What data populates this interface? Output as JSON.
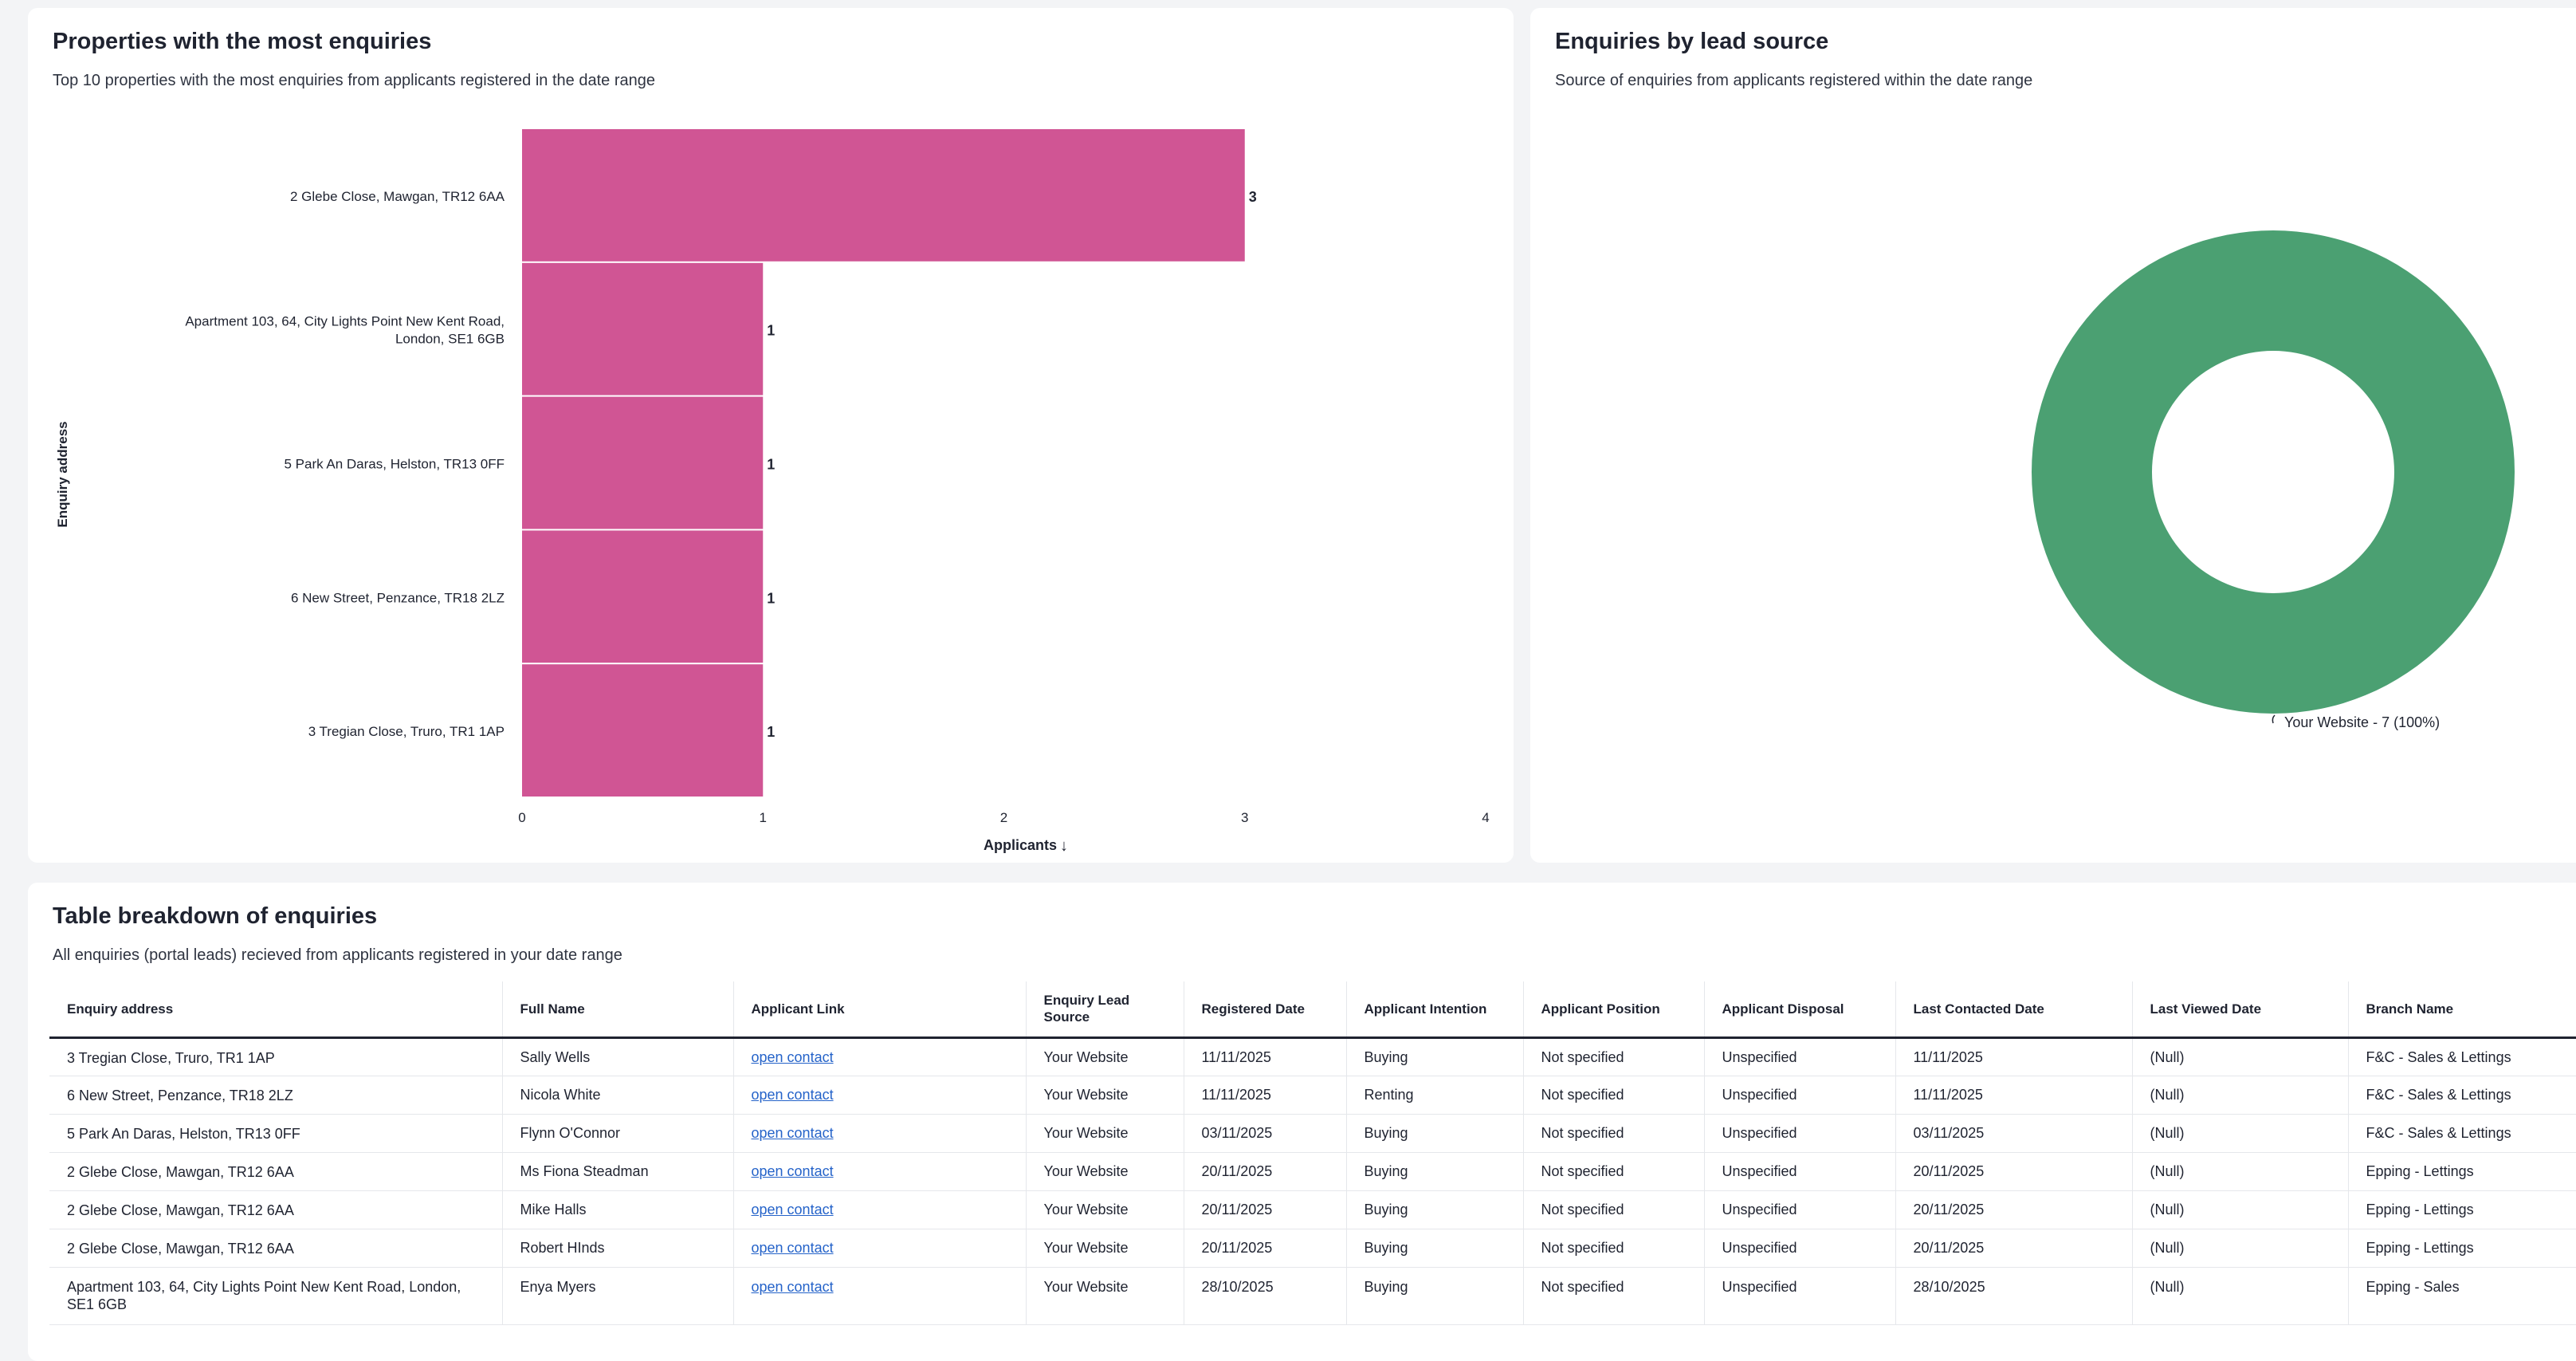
{
  "bar_card": {
    "title": "Properties with the most enquiries",
    "subtitle": "Top 10 properties with the most enquiries from applicants registered in the date range"
  },
  "donut_card": {
    "title": "Enquiries by lead source",
    "subtitle": "Source of enquiries from applicants registered within the date range"
  },
  "table_card": {
    "title": "Table breakdown of enquiries",
    "subtitle": "All enquiries (portal leads) recieved from applicants registered in your date range"
  },
  "chart_data": [
    {
      "type": "bar",
      "orientation": "horizontal",
      "categories": [
        "2 Glebe Close, Mawgan, TR12 6AA",
        "Apartment 103, 64, City Lights Point New Kent Road, London, SE1 6GB",
        "5 Park An Daras, Helston, TR13 0FF",
        "6 New Street, Penzance, TR18 2LZ",
        "3 Tregian Close, Truro, TR1 1AP"
      ],
      "values": [
        3,
        1,
        1,
        1,
        1
      ],
      "xlabel": "Applicants",
      "ylabel": "Enquiry address",
      "xlim": [
        0,
        4
      ],
      "xticks": [
        "0",
        "1",
        "2",
        "3",
        "4"
      ],
      "sort_indicator": "↓",
      "color": "#d05594"
    },
    {
      "type": "pie",
      "style": "donut",
      "labels": [
        "Your Website"
      ],
      "values": [
        7
      ],
      "data_labels": [
        "Your Website - 7 (100%)"
      ],
      "color": "#4ba072"
    }
  ],
  "table": {
    "columns": [
      "Enquiry address",
      "Full Name",
      "Applicant Link",
      "Enquiry Lead Source",
      "Registered Date",
      "Applicant Intention",
      "Applicant Position",
      "Applicant Disposal",
      "Last Contacted Date",
      "Last Viewed Date",
      "Branch Name"
    ],
    "rows": [
      [
        "3 Tregian Close, Truro, TR1 1AP",
        "Sally Wells",
        "open contact",
        "Your Website",
        "11/11/2025",
        "Buying",
        "Not specified",
        "Unspecified",
        "11/11/2025",
        "(Null)",
        "F&C - Sales & Lettings"
      ],
      [
        "6 New Street, Penzance, TR18 2LZ",
        "Nicola White",
        "open contact",
        "Your Website",
        "11/11/2025",
        "Renting",
        "Not specified",
        "Unspecified",
        "11/11/2025",
        "(Null)",
        "F&C - Sales & Lettings"
      ],
      [
        "5 Park An Daras, Helston, TR13 0FF",
        "Flynn O'Connor",
        "open contact",
        "Your Website",
        "03/11/2025",
        "Buying",
        "Not specified",
        "Unspecified",
        "03/11/2025",
        "(Null)",
        "F&C - Sales & Lettings"
      ],
      [
        "2 Glebe Close, Mawgan, TR12 6AA",
        "Ms Fiona Steadman",
        "open contact",
        "Your Website",
        "20/11/2025",
        "Buying",
        "Not specified",
        "Unspecified",
        "20/11/2025",
        "(Null)",
        "Epping - Lettings"
      ],
      [
        "2 Glebe Close, Mawgan, TR12 6AA",
        "Mike Halls",
        "open contact",
        "Your Website",
        "20/11/2025",
        "Buying",
        "Not specified",
        "Unspecified",
        "20/11/2025",
        "(Null)",
        "Epping - Lettings"
      ],
      [
        "2 Glebe Close, Mawgan, TR12 6AA",
        "Robert HInds",
        "open contact",
        "Your Website",
        "20/11/2025",
        "Buying",
        "Not specified",
        "Unspecified",
        "20/11/2025",
        "(Null)",
        "Epping - Lettings"
      ],
      [
        "Apartment 103, 64, City Lights Point New Kent Road, London, SE1 6GB",
        "Enya Myers",
        "open contact",
        "Your Website",
        "28/10/2025",
        "Buying",
        "Not specified",
        "Unspecified",
        "28/10/2025",
        "(Null)",
        "Epping - Sales"
      ]
    ]
  }
}
